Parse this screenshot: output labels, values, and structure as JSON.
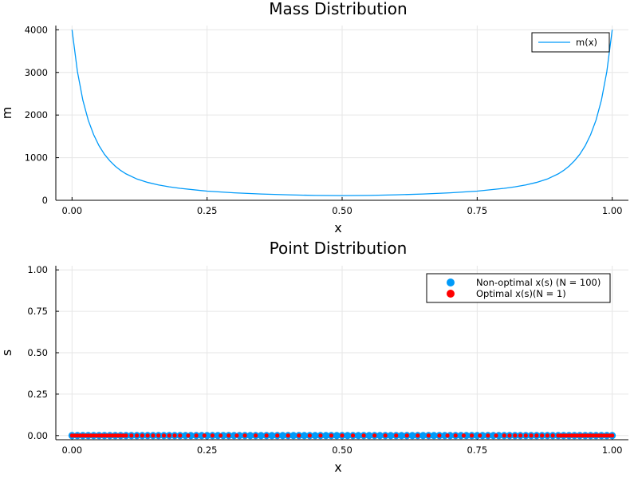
{
  "chart_data": [
    {
      "type": "line",
      "title": "Mass Distribution",
      "xlabel": "x",
      "ylabel": "m",
      "xlim": [
        -0.03,
        1.03
      ],
      "ylim": [
        0,
        4100
      ],
      "xticks": [
        0,
        0.25,
        0.5,
        0.75,
        1.0
      ],
      "xtick_labels": [
        "0.00",
        "0.25",
        "0.50",
        "0.75",
        "1.00"
      ],
      "yticks": [
        0,
        1000,
        2000,
        3000,
        4000
      ],
      "ytick_labels": [
        "0",
        "1000",
        "2000",
        "3000",
        "4000"
      ],
      "grid": true,
      "legend_position": "top-right",
      "series": [
        {
          "name": "m(x)",
          "color": "#009af9",
          "x": [
            0.0,
            0.01,
            0.02,
            0.03,
            0.04,
            0.05,
            0.06,
            0.07,
            0.08,
            0.09,
            0.1,
            0.12,
            0.14,
            0.16,
            0.18,
            0.2,
            0.25,
            0.3,
            0.35,
            0.4,
            0.45,
            0.5,
            0.55,
            0.6,
            0.65,
            0.7,
            0.75,
            0.8,
            0.82,
            0.84,
            0.86,
            0.88,
            0.9,
            0.91,
            0.92,
            0.93,
            0.94,
            0.95,
            0.96,
            0.97,
            0.98,
            0.99,
            1.0
          ],
          "y": [
            4000,
            3020,
            2350,
            1880,
            1540,
            1280,
            1080,
            925,
            800,
            700,
            620,
            500,
            420,
            360,
            315,
            280,
            215,
            175,
            148,
            128,
            115,
            110,
            115,
            128,
            148,
            175,
            215,
            280,
            315,
            360,
            420,
            500,
            620,
            700,
            800,
            925,
            1080,
            1280,
            1540,
            1880,
            2350,
            3020,
            4000
          ]
        }
      ]
    },
    {
      "type": "scatter",
      "title": "Point Distribution",
      "xlabel": "x",
      "ylabel": "s",
      "xlim": [
        -0.03,
        1.03
      ],
      "ylim": [
        -0.025,
        1.025
      ],
      "xticks": [
        0,
        0.25,
        0.5,
        0.75,
        1.0
      ],
      "xtick_labels": [
        "0.00",
        "0.25",
        "0.50",
        "0.75",
        "1.00"
      ],
      "yticks": [
        0,
        0.25,
        0.5,
        0.75,
        1.0
      ],
      "ytick_labels": [
        "0.00",
        "0.25",
        "0.50",
        "0.75",
        "1.00"
      ],
      "grid": true,
      "legend_position": "top-right",
      "series": [
        {
          "name": "Non-optimal x(s) (N = 100)",
          "color": "#009af9",
          "marker_size": 4,
          "x": [
            0.0,
            0.01,
            0.02,
            0.03,
            0.04,
            0.05,
            0.06,
            0.07,
            0.08,
            0.09,
            0.1,
            0.11,
            0.12,
            0.13,
            0.14,
            0.15,
            0.16,
            0.17,
            0.18,
            0.19,
            0.2,
            0.21,
            0.22,
            0.23,
            0.24,
            0.25,
            0.26,
            0.27,
            0.28,
            0.29,
            0.3,
            0.31,
            0.32,
            0.33,
            0.34,
            0.35,
            0.36,
            0.37,
            0.38,
            0.39,
            0.4,
            0.41,
            0.42,
            0.43,
            0.44,
            0.45,
            0.46,
            0.47,
            0.48,
            0.49,
            0.5,
            0.51,
            0.52,
            0.53,
            0.54,
            0.55,
            0.56,
            0.57,
            0.58,
            0.59,
            0.6,
            0.61,
            0.62,
            0.63,
            0.64,
            0.65,
            0.66,
            0.67,
            0.68,
            0.69,
            0.7,
            0.71,
            0.72,
            0.73,
            0.74,
            0.75,
            0.76,
            0.77,
            0.78,
            0.79,
            0.8,
            0.81,
            0.82,
            0.83,
            0.84,
            0.85,
            0.86,
            0.87,
            0.88,
            0.89,
            0.9,
            0.91,
            0.92,
            0.93,
            0.94,
            0.95,
            0.96,
            0.97,
            0.98,
            0.99,
            1.0
          ],
          "y": [
            0,
            0,
            0,
            0,
            0,
            0,
            0,
            0,
            0,
            0,
            0,
            0,
            0,
            0,
            0,
            0,
            0,
            0,
            0,
            0,
            0,
            0,
            0,
            0,
            0,
            0,
            0,
            0,
            0,
            0,
            0,
            0,
            0,
            0,
            0,
            0,
            0,
            0,
            0,
            0,
            0,
            0,
            0,
            0,
            0,
            0,
            0,
            0,
            0,
            0,
            0,
            0,
            0,
            0,
            0,
            0,
            0,
            0,
            0,
            0,
            0,
            0,
            0,
            0,
            0,
            0,
            0,
            0,
            0,
            0,
            0,
            0,
            0,
            0,
            0,
            0,
            0,
            0,
            0,
            0,
            0,
            0,
            0,
            0,
            0,
            0,
            0,
            0,
            0,
            0,
            0,
            0,
            0,
            0,
            0,
            0,
            0,
            0,
            0,
            0,
            0
          ]
        },
        {
          "name": "Optimal x(s)(N = 1)",
          "color": "#ff0000",
          "marker_size": 2.6,
          "x": [
            0.0,
            0.005,
            0.01,
            0.015,
            0.02,
            0.025,
            0.03,
            0.035,
            0.04,
            0.045,
            0.05,
            0.055,
            0.06,
            0.065,
            0.07,
            0.075,
            0.08,
            0.085,
            0.09,
            0.095,
            0.1,
            0.11,
            0.12,
            0.13,
            0.14,
            0.15,
            0.16,
            0.17,
            0.18,
            0.19,
            0.2,
            0.215,
            0.23,
            0.245,
            0.26,
            0.275,
            0.29,
            0.305,
            0.32,
            0.34,
            0.36,
            0.38,
            0.4,
            0.42,
            0.44,
            0.46,
            0.48,
            0.5,
            0.52,
            0.54,
            0.56,
            0.58,
            0.6,
            0.62,
            0.64,
            0.66,
            0.68,
            0.695,
            0.71,
            0.725,
            0.74,
            0.755,
            0.77,
            0.785,
            0.8,
            0.81,
            0.82,
            0.83,
            0.84,
            0.85,
            0.86,
            0.87,
            0.88,
            0.89,
            0.9,
            0.905,
            0.91,
            0.915,
            0.92,
            0.925,
            0.93,
            0.935,
            0.94,
            0.945,
            0.95,
            0.955,
            0.96,
            0.965,
            0.97,
            0.975,
            0.98,
            0.985,
            0.99,
            0.995,
            1.0
          ],
          "y": [
            0,
            0,
            0,
            0,
            0,
            0,
            0,
            0,
            0,
            0,
            0,
            0,
            0,
            0,
            0,
            0,
            0,
            0,
            0,
            0,
            0,
            0,
            0,
            0,
            0,
            0,
            0,
            0,
            0,
            0,
            0,
            0,
            0,
            0,
            0,
            0,
            0,
            0,
            0,
            0,
            0,
            0,
            0,
            0,
            0,
            0,
            0,
            0,
            0,
            0,
            0,
            0,
            0,
            0,
            0,
            0,
            0,
            0,
            0,
            0,
            0,
            0,
            0,
            0,
            0,
            0,
            0,
            0,
            0,
            0,
            0,
            0,
            0,
            0,
            0,
            0,
            0,
            0,
            0,
            0,
            0,
            0,
            0,
            0,
            0,
            0,
            0,
            0,
            0,
            0,
            0,
            0,
            0,
            0,
            0
          ]
        }
      ]
    }
  ]
}
